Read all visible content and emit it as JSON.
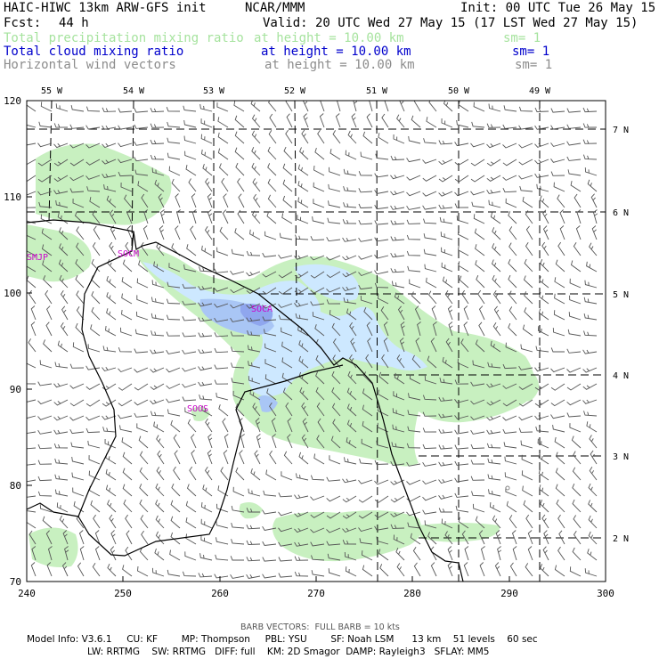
{
  "header": {
    "title": "HAIC-HIWC 13km ARW-GFS init",
    "org": "NCAR/MMM",
    "init": "Init: 00 UTC Tue 26 May 15",
    "fcst_label": "Fcst:",
    "fcst_value": "44 h",
    "valid": "Valid: 20 UTC Wed 27 May 15 (17 LST Wed 27 May 15)"
  },
  "fields": [
    {
      "name": "Total precipitation mixing ratio",
      "height": "at height = 10.00 km",
      "sm": "sm= 1",
      "color": "#a6e39e"
    },
    {
      "name": "Total cloud mixing ratio",
      "height": "at height = 10.00 km",
      "sm": "sm= 1",
      "color": "#0000cc"
    },
    {
      "name": "Horizontal wind vectors",
      "height": "at height = 10.00 km",
      "sm": "sm= 1",
      "color": "#8c8c8c"
    }
  ],
  "map": {
    "x_ticks": [
      "240",
      "250",
      "260",
      "270",
      "280",
      "290",
      "300"
    ],
    "y_ticks": [
      "70",
      "80",
      "90",
      "100",
      "110",
      "120"
    ],
    "lon_labels": [
      "55 W",
      "54 W",
      "53 W",
      "52 W",
      "51 W",
      "50 W",
      "49 W"
    ],
    "lat_labels": [
      "7 N",
      "6 N",
      "5 N",
      "4 N",
      "3 N",
      "2 N"
    ],
    "stations": [
      "SMJP",
      "SOCM",
      "SOCA",
      "SOOS"
    ],
    "colors": {
      "precip": "#c8f0c0",
      "cloud_light": "#cde8ff",
      "cloud_mid": "#a9c6f5",
      "cloud_dark": "#8fa6ee",
      "station": "#cc00cc",
      "coast": "#000000",
      "barb": "#555555"
    }
  },
  "footer": {
    "barb_note": "BARB VECTORS:  FULL BARB = 10 kts",
    "line1": "Model Info: V3.6.1     CU: KF        MP: Thompson     PBL: YSU        SF: Noah LSM      13 km    51 levels    60 sec",
    "line2": "LW: RRTMG    SW: RRTMG   DIFF: full    KM: 2D Smagor  DAMP: Rayleigh3   SFLAY: MM5"
  }
}
